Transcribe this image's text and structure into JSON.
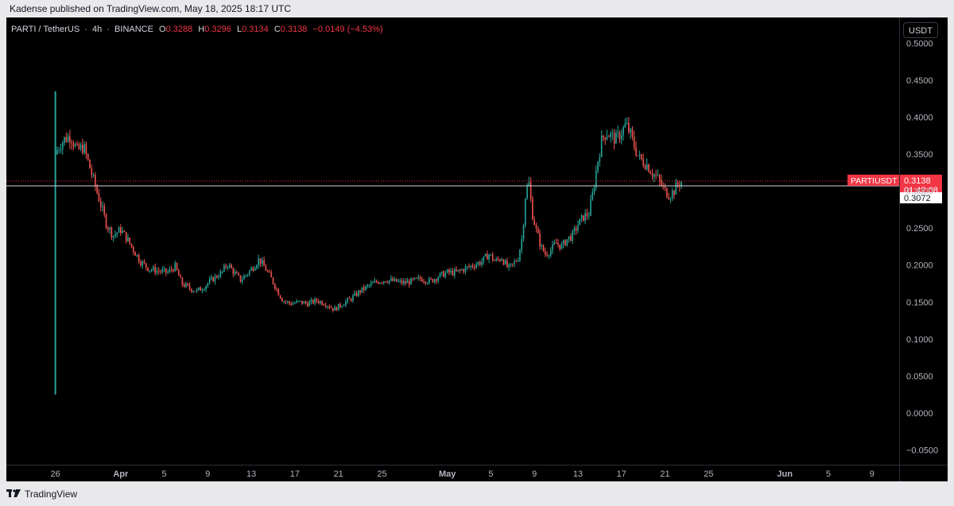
{
  "header": {
    "published": "Kadense published on TradingView.com, May 18, 2025 18:17 UTC"
  },
  "legend": {
    "symbol": "PARTI / TetherUS",
    "interval": "4h",
    "exchange": "BINANCE",
    "open_label": "O",
    "open": "0.3288",
    "high_label": "H",
    "high": "0.3296",
    "low_label": "L",
    "low": "0.3134",
    "close_label": "C",
    "close": "0.3138",
    "change": "−0.0149 (−4.53%)"
  },
  "currency_button": "USDT",
  "price_tag": {
    "symbol": "PARTIUSDT",
    "price": "0.3138",
    "countdown": "01:42:08"
  },
  "crosshair_price": "0.3072",
  "footer": {
    "brand": "TradingView"
  },
  "colors": {
    "up": "#26a69a",
    "down": "#ef5350",
    "background": "#000000",
    "tag": "#f23645"
  },
  "chart_data": {
    "type": "candlestick",
    "title": "PARTI / TetherUS · 4h · BINANCE",
    "y_ticks": [
      "0.5000",
      "0.4500",
      "0.4000",
      "0.3500",
      "0.3000",
      "0.2500",
      "0.2000",
      "0.1500",
      "0.1000",
      "0.0500",
      "0.0000",
      "−0.0500"
    ],
    "ylim": [
      -0.07,
      0.535
    ],
    "x_ticks": [
      "26",
      "Apr",
      "5",
      "9",
      "13",
      "17",
      "21",
      "25",
      "May",
      "5",
      "9",
      "13",
      "17",
      "21",
      "25",
      "Jun",
      "5",
      "9"
    ],
    "x_tick_days": [
      0,
      6,
      10,
      14,
      18,
      22,
      26,
      30,
      36,
      40,
      44,
      48,
      52,
      56,
      60,
      67,
      71,
      75
    ],
    "x_range_days": [
      -4.5,
      77.5
    ],
    "close_path": [
      [
        0.0,
        0.35
      ],
      [
        0.3,
        0.36
      ],
      [
        0.8,
        0.37
      ],
      [
        1.4,
        0.375
      ],
      [
        2.0,
        0.355
      ],
      [
        2.6,
        0.36
      ],
      [
        3.2,
        0.33
      ],
      [
        3.8,
        0.3
      ],
      [
        4.2,
        0.28
      ],
      [
        4.7,
        0.255
      ],
      [
        5.3,
        0.24
      ],
      [
        6.0,
        0.248
      ],
      [
        6.6,
        0.235
      ],
      [
        7.2,
        0.22
      ],
      [
        7.8,
        0.205
      ],
      [
        8.6,
        0.195
      ],
      [
        9.5,
        0.192
      ],
      [
        10.3,
        0.19
      ],
      [
        11.0,
        0.198
      ],
      [
        11.6,
        0.175
      ],
      [
        12.4,
        0.168
      ],
      [
        13.0,
        0.165
      ],
      [
        13.6,
        0.17
      ],
      [
        14.2,
        0.178
      ],
      [
        14.8,
        0.185
      ],
      [
        15.3,
        0.19
      ],
      [
        15.8,
        0.202
      ],
      [
        16.4,
        0.19
      ],
      [
        17.0,
        0.18
      ],
      [
        17.6,
        0.188
      ],
      [
        18.2,
        0.198
      ],
      [
        18.7,
        0.208
      ],
      [
        19.3,
        0.195
      ],
      [
        19.9,
        0.18
      ],
      [
        20.4,
        0.165
      ],
      [
        20.9,
        0.152
      ],
      [
        21.6,
        0.148
      ],
      [
        22.4,
        0.15
      ],
      [
        23.2,
        0.148
      ],
      [
        24.0,
        0.152
      ],
      [
        24.8,
        0.148
      ],
      [
        25.6,
        0.14
      ],
      [
        26.4,
        0.148
      ],
      [
        27.2,
        0.155
      ],
      [
        28.0,
        0.165
      ],
      [
        28.8,
        0.172
      ],
      [
        29.6,
        0.178
      ],
      [
        30.4,
        0.18
      ],
      [
        31.2,
        0.178
      ],
      [
        32.0,
        0.176
      ],
      [
        32.8,
        0.178
      ],
      [
        33.6,
        0.182
      ],
      [
        34.4,
        0.178
      ],
      [
        35.2,
        0.185
      ],
      [
        36.0,
        0.19
      ],
      [
        36.8,
        0.19
      ],
      [
        37.6,
        0.195
      ],
      [
        38.4,
        0.2
      ],
      [
        39.2,
        0.205
      ],
      [
        39.8,
        0.215
      ],
      [
        40.4,
        0.205
      ],
      [
        41.0,
        0.21
      ],
      [
        41.6,
        0.195
      ],
      [
        42.0,
        0.2
      ],
      [
        42.5,
        0.21
      ],
      [
        42.9,
        0.24
      ],
      [
        43.2,
        0.3
      ],
      [
        43.5,
        0.31
      ],
      [
        43.8,
        0.27
      ],
      [
        44.2,
        0.245
      ],
      [
        44.6,
        0.225
      ],
      [
        45.0,
        0.215
      ],
      [
        45.5,
        0.22
      ],
      [
        46.0,
        0.23
      ],
      [
        46.5,
        0.225
      ],
      [
        47.0,
        0.235
      ],
      [
        47.5,
        0.24
      ],
      [
        48.0,
        0.255
      ],
      [
        48.5,
        0.265
      ],
      [
        49.0,
        0.27
      ],
      [
        49.4,
        0.3
      ],
      [
        49.8,
        0.34
      ],
      [
        50.2,
        0.37
      ],
      [
        50.6,
        0.38
      ],
      [
        51.0,
        0.375
      ],
      [
        51.5,
        0.37
      ],
      [
        52.0,
        0.38
      ],
      [
        52.4,
        0.39
      ],
      [
        52.8,
        0.378
      ],
      [
        53.2,
        0.36
      ],
      [
        53.6,
        0.345
      ],
      [
        54.0,
        0.34
      ],
      [
        54.4,
        0.335
      ],
      [
        54.8,
        0.325
      ],
      [
        55.2,
        0.32
      ],
      [
        55.6,
        0.31
      ],
      [
        56.0,
        0.3
      ],
      [
        56.4,
        0.295
      ],
      [
        56.8,
        0.3
      ],
      [
        57.2,
        0.31
      ],
      [
        57.6,
        0.3138
      ]
    ],
    "ipo_spike": {
      "day": 0.0,
      "high": 0.435,
      "low": 0.025
    },
    "last_price": 0.3138,
    "crosshair_value": 0.3072
  }
}
